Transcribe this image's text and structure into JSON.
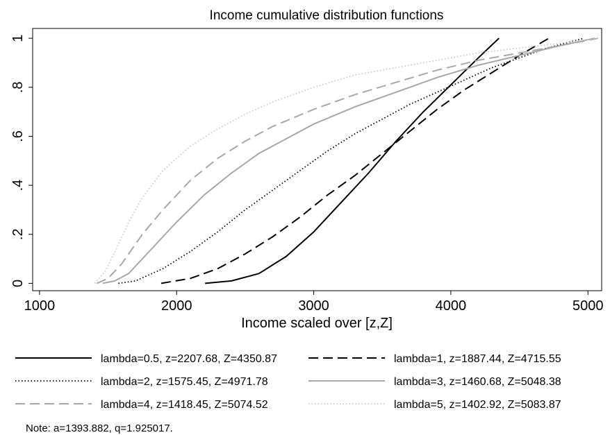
{
  "chart_data": {
    "type": "line",
    "title": "Income cumulative distribution functions",
    "xlabel": "Income scaled over [z,Z]",
    "ylabel": "",
    "xlim": [
      950,
      5100
    ],
    "ylim": [
      -0.03,
      1.04
    ],
    "xticks": [
      1000,
      2000,
      3000,
      4000,
      5000
    ],
    "yticks": [
      0,
      0.2,
      0.4,
      0.6,
      0.8,
      1
    ],
    "xtick_labels": [
      "1000",
      "2000",
      "3000",
      "4000",
      "5000"
    ],
    "ytick_labels": [
      "0",
      ".2",
      ".4",
      ".6",
      ".8",
      "1"
    ],
    "grid": false,
    "legend_position": "bottom",
    "note": "Note: a=1393.882, q=1.925017.",
    "series": [
      {
        "name": "lambda=0.5, z=2207.68, Z=4350.87",
        "style": "solid",
        "color": "#000000",
        "x": [
          2207.68,
          2400,
          2600,
          2800,
          3000,
          3200,
          3400,
          3600,
          3800,
          4000,
          4200,
          4350.87
        ],
        "y": [
          0,
          0.01,
          0.04,
          0.11,
          0.21,
          0.33,
          0.45,
          0.58,
          0.7,
          0.81,
          0.92,
          1
        ]
      },
      {
        "name": "lambda=1, z=1887.44, Z=4715.55",
        "style": "dash",
        "color": "#000000",
        "x": [
          1887.44,
          2100,
          2300,
          2500,
          2700,
          2900,
          3100,
          3300,
          3500,
          3700,
          3900,
          4100,
          4300,
          4500,
          4715.55
        ],
        "y": [
          0,
          0.02,
          0.06,
          0.12,
          0.19,
          0.27,
          0.36,
          0.44,
          0.53,
          0.62,
          0.71,
          0.79,
          0.86,
          0.93,
          1
        ]
      },
      {
        "name": "lambda=2, z=1575.45, Z=4971.78",
        "style": "dot",
        "color": "#000000",
        "x": [
          1575.45,
          1700,
          1900,
          2100,
          2300,
          2500,
          2700,
          2900,
          3100,
          3300,
          3500,
          3700,
          3900,
          4100,
          4300,
          4500,
          4700,
          4971.78
        ],
        "y": [
          0,
          0.01,
          0.06,
          0.13,
          0.21,
          0.3,
          0.38,
          0.46,
          0.54,
          0.61,
          0.67,
          0.73,
          0.78,
          0.83,
          0.88,
          0.92,
          0.96,
          1
        ]
      },
      {
        "name": "lambda=3, z=1460.68, Z=5048.38",
        "style": "solid",
        "color": "#a8a8a8",
        "x": [
          1460.68,
          1550,
          1650,
          1800,
          2000,
          2200,
          2400,
          2600,
          2800,
          3000,
          3300,
          3600,
          3900,
          4200,
          4500,
          4800,
          5048.38
        ],
        "y": [
          0,
          0.01,
          0.04,
          0.13,
          0.25,
          0.36,
          0.45,
          0.53,
          0.59,
          0.65,
          0.72,
          0.78,
          0.84,
          0.89,
          0.93,
          0.97,
          1
        ]
      },
      {
        "name": "lambda=4, z=1418.45, Z=5074.52",
        "style": "dash",
        "color": "#a8a8a8",
        "x": [
          1418.45,
          1500,
          1600,
          1750,
          1900,
          2100,
          2300,
          2500,
          2700,
          3000,
          3300,
          3600,
          3900,
          4200,
          4500,
          4800,
          5074.52
        ],
        "y": [
          0,
          0.02,
          0.08,
          0.2,
          0.3,
          0.42,
          0.51,
          0.58,
          0.64,
          0.71,
          0.77,
          0.82,
          0.87,
          0.91,
          0.94,
          0.97,
          1
        ]
      },
      {
        "name": "lambda=5, z=1402.92, Z=5083.87",
        "style": "dot",
        "color": "#c8c8c8",
        "x": [
          1402.92,
          1480,
          1560,
          1650,
          1750,
          1900,
          2100,
          2300,
          2500,
          2700,
          3000,
          3300,
          3600,
          3900,
          4200,
          4500,
          4800,
          5083.87
        ],
        "y": [
          0,
          0.05,
          0.14,
          0.25,
          0.35,
          0.46,
          0.56,
          0.63,
          0.69,
          0.74,
          0.8,
          0.85,
          0.88,
          0.91,
          0.94,
          0.96,
          0.98,
          1
        ]
      }
    ]
  }
}
